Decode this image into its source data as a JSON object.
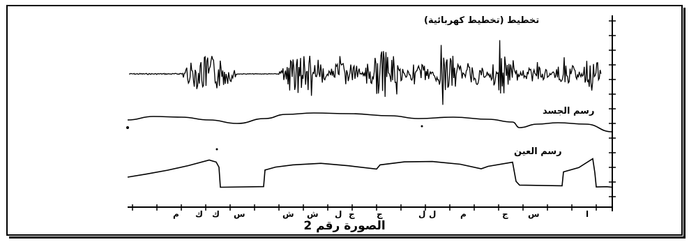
{
  "labels": {
    "eeg": "تخطيط (تخطيط كهربائية)",
    "body": "رسم الجسد",
    "eye": "رسم العين"
  },
  "axis_marks": [
    "م",
    "ك",
    "ك",
    "س",
    "ش",
    "ش",
    "ل",
    "ج",
    "ج",
    "ل",
    "ل",
    "م",
    "ج",
    "س",
    "ا"
  ],
  "caption": "الصورة رقم 2",
  "colors": {
    "ink": "#000000",
    "paper": "#ffffff"
  }
}
